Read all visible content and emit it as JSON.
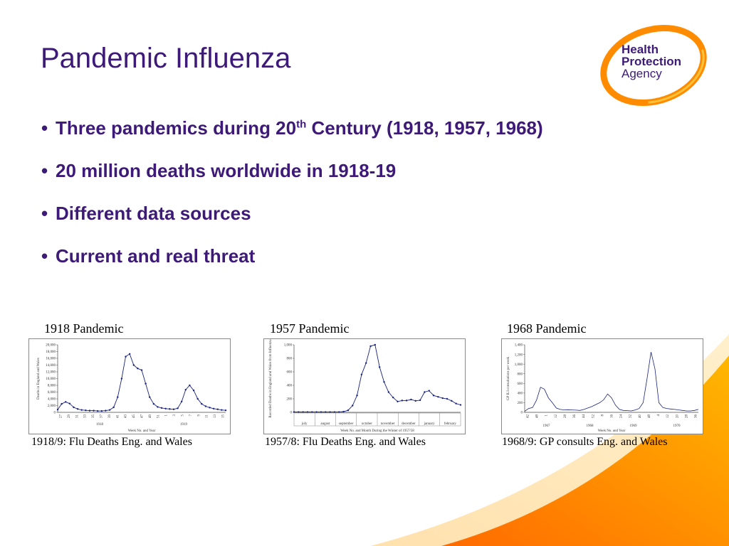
{
  "title": "Pandemic Influenza",
  "logo": {
    "line1": "Health",
    "line2": "Protection",
    "line3": "Agency"
  },
  "colors": {
    "title": "#3d1a78",
    "accent": "#ff7a00",
    "accent_light": "#ffc23a",
    "line": "#1a237e"
  },
  "bullets": [
    {
      "text_before": "Three pandemics during 20",
      "sup": "th",
      "text_after": " Century (1918, 1957, 1968)"
    },
    {
      "text_before": "20 million deaths worldwide in 1918-19",
      "sup": "",
      "text_after": ""
    },
    {
      "text_before": "Different data sources",
      "sup": "",
      "text_after": ""
    },
    {
      "text_before": "Current and real threat",
      "sup": "",
      "text_after": ""
    }
  ],
  "charts": {
    "c1": {
      "title": "1918 Pandemic",
      "caption": "1918/9: Flu Deaths Eng. and Wales"
    },
    "c2": {
      "title": "1957 Pandemic",
      "caption": "1957/8: Flu Deaths Eng. and Wales"
    },
    "c3": {
      "title": "1968 Pandemic",
      "caption": "1968/9: GP consults Eng. and Wales"
    }
  },
  "chart_data": [
    {
      "type": "line",
      "ylabel": "Deaths in England and Wales",
      "xlabel": "Week No. and Year",
      "ylim": [
        0,
        20000
      ],
      "yticks": [
        "0",
        "2,000",
        "4,000",
        "6,000",
        "8,000",
        "10,000",
        "12,000",
        "14,000",
        "16,000",
        "18,000",
        "20,000"
      ],
      "xticks": [
        "27",
        "29",
        "31",
        "33",
        "35",
        "37",
        "39",
        "41",
        "43",
        "45",
        "47",
        "49",
        "51",
        "1",
        "3",
        "5",
        "7",
        "9",
        "11",
        "13",
        "15"
      ],
      "year_labels": [
        "1918",
        "1919"
      ],
      "values": [
        800,
        2500,
        3100,
        2600,
        1500,
        1000,
        700,
        600,
        500,
        500,
        400,
        400,
        500,
        700,
        1500,
        4500,
        10000,
        16500,
        17300,
        14000,
        13000,
        12500,
        8500,
        4500,
        2500,
        1600,
        1300,
        1100,
        1000,
        900,
        1200,
        3200,
        6700,
        8000,
        6500,
        4000,
        2500,
        1800,
        1400,
        1100,
        900,
        700,
        600
      ],
      "grid": false
    },
    {
      "type": "line",
      "ylabel": "Recorded Deaths in England and Wales from Influenza",
      "xlabel": "Week No. and Month During the Winter of 1957/58",
      "ylim": [
        0,
        1000
      ],
      "yticks": [
        "0",
        "200",
        "400",
        "600",
        "800",
        "1,000"
      ],
      "months": [
        "july",
        "august",
        "september",
        "october",
        "november",
        "december",
        "january",
        "february"
      ],
      "values": [
        5,
        5,
        5,
        5,
        5,
        5,
        5,
        5,
        5,
        5,
        5,
        10,
        30,
        100,
        250,
        560,
        730,
        980,
        1000,
        670,
        450,
        300,
        220,
        160,
        175,
        175,
        190,
        170,
        180,
        300,
        320,
        250,
        230,
        210,
        200,
        170,
        130,
        110
      ],
      "grid": false
    },
    {
      "type": "line",
      "ylabel": "GP ILI consultations per week",
      "xlabel": "Week No. and Year",
      "ylim": [
        0,
        1400
      ],
      "yticks": [
        "0",
        "200",
        "400",
        "600",
        "800",
        "1,000",
        "1,200",
        "1,400"
      ],
      "xticks": [
        "42",
        "48",
        "1",
        "12",
        "28",
        "36",
        "44",
        "52",
        "8",
        "16",
        "24",
        "32",
        "40",
        "48",
        "4",
        "12",
        "20",
        "28",
        "36"
      ],
      "year_labels": [
        "1967",
        "1968",
        "1969",
        "1970"
      ],
      "values": [
        20,
        80,
        100,
        250,
        520,
        480,
        300,
        200,
        90,
        60,
        50,
        55,
        50,
        45,
        40,
        60,
        90,
        120,
        160,
        200,
        260,
        380,
        300,
        150,
        60,
        40,
        35,
        30,
        50,
        80,
        200,
        700,
        1250,
        900,
        200,
        100,
        80,
        70,
        60,
        50,
        40,
        30,
        30,
        40,
        60
      ],
      "grid": false
    }
  ]
}
